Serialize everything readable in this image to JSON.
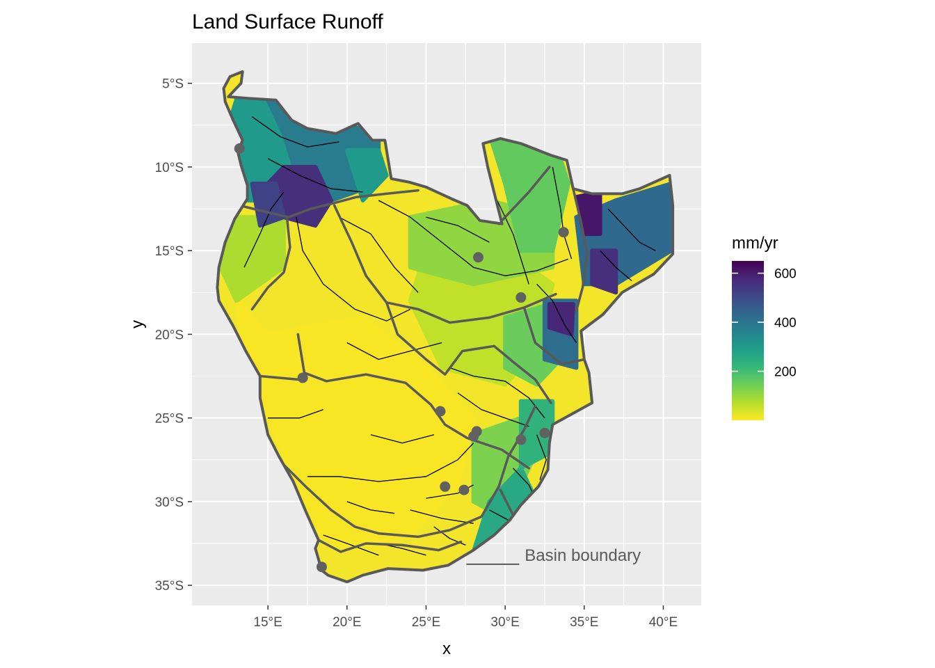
{
  "chart_data": {
    "type": "heatmap",
    "title": "Land Surface Runoff",
    "xlabel": "x",
    "ylabel": "y",
    "xlim": [
      10.2,
      42.4
    ],
    "ylim": [
      -36.2,
      -2.6
    ],
    "x_ticks": [
      {
        "value": 15,
        "label": "15°E"
      },
      {
        "value": 20,
        "label": "20°E"
      },
      {
        "value": 25,
        "label": "25°E"
      },
      {
        "value": 30,
        "label": "30°E"
      },
      {
        "value": 35,
        "label": "35°E"
      },
      {
        "value": 40,
        "label": "40°E"
      }
    ],
    "y_ticks": [
      {
        "value": -5,
        "label": "5°S"
      },
      {
        "value": -10,
        "label": "10°S"
      },
      {
        "value": -15,
        "label": "15°S"
      },
      {
        "value": -20,
        "label": "20°S"
      },
      {
        "value": -25,
        "label": "25°S"
      },
      {
        "value": -30,
        "label": "30°S"
      },
      {
        "value": -35,
        "label": "35°S"
      }
    ],
    "grid": true,
    "legend": {
      "title": "mm/yr",
      "position": "right",
      "range": [
        0,
        650
      ],
      "breaks": [
        {
          "value": 600,
          "label": "600"
        },
        {
          "value": 400,
          "label": "400"
        },
        {
          "value": 200,
          "label": "200"
        }
      ],
      "palette": [
        "#fde725",
        "#b5de2b",
        "#6ece58",
        "#35b779",
        "#1f9e89",
        "#26828e",
        "#31688e",
        "#3e4989",
        "#482878",
        "#440154"
      ]
    },
    "annotation": {
      "label": "Basin boundary",
      "x": 33,
      "y": -33.2
    },
    "outline_color": "#595959",
    "runoff_zones": [
      {
        "value": 5,
        "poly": [
          [
            15,
            -20
          ],
          [
            21,
            -19
          ],
          [
            25,
            -22
          ],
          [
            28,
            -25
          ],
          [
            27,
            -29
          ],
          [
            24,
            -32
          ],
          [
            20,
            -33
          ],
          [
            17,
            -31
          ],
          [
            16,
            -27
          ],
          [
            14,
            -23
          ],
          [
            13,
            -18
          ]
        ]
      },
      {
        "value": 60,
        "poly": [
          [
            25,
            -15
          ],
          [
            30,
            -15
          ],
          [
            33,
            -17
          ],
          [
            32,
            -21
          ],
          [
            30,
            -23
          ],
          [
            26,
            -22
          ],
          [
            24,
            -18
          ]
        ]
      },
      {
        "value": 110,
        "poly": [
          [
            24,
            -13
          ],
          [
            29,
            -12
          ],
          [
            33,
            -13
          ],
          [
            33,
            -16
          ],
          [
            28,
            -17
          ],
          [
            24,
            -16
          ]
        ]
      },
      {
        "value": 160,
        "poly": [
          [
            29,
            -8
          ],
          [
            33,
            -8
          ],
          [
            34,
            -11
          ],
          [
            33,
            -15
          ],
          [
            31,
            -15
          ],
          [
            30,
            -11
          ]
        ]
      },
      {
        "value": 150,
        "poly": [
          [
            30,
            -19
          ],
          [
            33.5,
            -18
          ],
          [
            34,
            -21
          ],
          [
            32,
            -23
          ],
          [
            30,
            -22
          ]
        ]
      },
      {
        "value": 80,
        "poly": [
          [
            12,
            -13
          ],
          [
            16,
            -13
          ],
          [
            16,
            -16
          ],
          [
            13,
            -18
          ],
          [
            12,
            -16
          ]
        ]
      },
      {
        "value": 130,
        "poly": [
          [
            28,
            -26
          ],
          [
            31,
            -25
          ],
          [
            32,
            -27
          ],
          [
            30,
            -31
          ],
          [
            28,
            -30
          ]
        ]
      },
      {
        "value": 260,
        "poly": [
          [
            29,
            -30
          ],
          [
            31,
            -28
          ],
          [
            32,
            -30
          ],
          [
            30,
            -32
          ],
          [
            28,
            -33
          ]
        ]
      },
      {
        "value": 230,
        "poly": [
          [
            31,
            -24
          ],
          [
            33,
            -24
          ],
          [
            33,
            -27
          ],
          [
            31,
            -28
          ]
        ]
      },
      {
        "value": 300,
        "poly": [
          [
            13,
            -6
          ],
          [
            16,
            -6
          ],
          [
            17,
            -9
          ],
          [
            15,
            -12
          ],
          [
            12,
            -12
          ],
          [
            12,
            -9
          ]
        ]
      },
      {
        "value": 380,
        "poly": [
          [
            15,
            -6
          ],
          [
            18,
            -7
          ],
          [
            22,
            -8
          ],
          [
            22,
            -11
          ],
          [
            19,
            -12
          ],
          [
            17,
            -11
          ],
          [
            16,
            -8
          ]
        ]
      },
      {
        "value": 300,
        "poly": [
          [
            20,
            -9
          ],
          [
            22,
            -9
          ],
          [
            22.5,
            -10.5
          ],
          [
            21,
            -12
          ]
        ]
      },
      {
        "value": 560,
        "poly": [
          [
            16,
            -10
          ],
          [
            18,
            -10
          ],
          [
            19,
            -12
          ],
          [
            18,
            -13.5
          ],
          [
            16,
            -13
          ],
          [
            15,
            -11
          ]
        ]
      },
      {
        "value": 520,
        "poly": [
          [
            14,
            -11
          ],
          [
            15.5,
            -11
          ],
          [
            16,
            -13
          ],
          [
            14.5,
            -13.5
          ]
        ]
      },
      {
        "value": 430,
        "poly": [
          [
            34.5,
            -13
          ],
          [
            37,
            -12
          ],
          [
            40.5,
            -11
          ],
          [
            40.5,
            -15
          ],
          [
            37,
            -17
          ],
          [
            35,
            -17
          ]
        ]
      },
      {
        "value": 610,
        "poly": [
          [
            34.5,
            -11.8
          ],
          [
            36,
            -11.5
          ],
          [
            36,
            -14
          ],
          [
            35,
            -14
          ]
        ]
      },
      {
        "value": 560,
        "poly": [
          [
            35.5,
            -15
          ],
          [
            37,
            -15
          ],
          [
            37,
            -17.5
          ],
          [
            35.5,
            -17
          ]
        ]
      },
      {
        "value": 420,
        "poly": [
          [
            32.5,
            -18
          ],
          [
            34.5,
            -18
          ],
          [
            34.5,
            -22
          ],
          [
            32.5,
            -21.5
          ]
        ]
      },
      {
        "value": 580,
        "poly": [
          [
            32.8,
            -18.2
          ],
          [
            34.3,
            -18.2
          ],
          [
            34.2,
            -20
          ],
          [
            32.8,
            -19.6
          ]
        ]
      }
    ],
    "rivers": [
      [
        [
          13.5,
          -16
        ],
        [
          14.5,
          -14
        ],
        [
          15.2,
          -12.5
        ],
        [
          16,
          -11.5
        ]
      ],
      [
        [
          14,
          -7
        ],
        [
          15.8,
          -8.2
        ],
        [
          17.5,
          -8.8
        ],
        [
          19.5,
          -8.5
        ]
      ],
      [
        [
          15,
          -9.5
        ],
        [
          17,
          -10.5
        ],
        [
          19,
          -11.3
        ],
        [
          21,
          -11.5
        ]
      ],
      [
        [
          16.8,
          -13
        ],
        [
          17.2,
          -15
        ],
        [
          18.5,
          -17
        ],
        [
          20.5,
          -18.5
        ],
        [
          22.5,
          -19.2
        ],
        [
          24,
          -18.5
        ]
      ],
      [
        [
          19.5,
          -13
        ],
        [
          21.5,
          -14
        ],
        [
          23,
          -16
        ],
        [
          24.5,
          -17.5
        ]
      ],
      [
        [
          22,
          -12
        ],
        [
          24,
          -13
        ],
        [
          26,
          -14.5
        ],
        [
          28,
          -16
        ],
        [
          30,
          -16.5
        ],
        [
          32,
          -16.2
        ],
        [
          34,
          -15.5
        ]
      ],
      [
        [
          25,
          -13
        ],
        [
          27,
          -13.5
        ],
        [
          29,
          -14.5
        ]
      ],
      [
        [
          28,
          -10
        ],
        [
          29.5,
          -12
        ],
        [
          30.5,
          -14
        ],
        [
          31,
          -15.5
        ],
        [
          31.5,
          -17
        ]
      ],
      [
        [
          33,
          -10
        ],
        [
          33.5,
          -12.5
        ],
        [
          33.7,
          -14
        ],
        [
          34.2,
          -15.5
        ]
      ],
      [
        [
          32,
          -17
        ],
        [
          33,
          -18
        ],
        [
          33.8,
          -19.5
        ],
        [
          34.5,
          -20.5
        ]
      ],
      [
        [
          36.5,
          -12.5
        ],
        [
          37.5,
          -13.5
        ],
        [
          38.5,
          -14.5
        ],
        [
          39.5,
          -15
        ]
      ],
      [
        [
          36,
          -15
        ],
        [
          37,
          -16
        ],
        [
          38,
          -16.8
        ]
      ],
      [
        [
          26.5,
          -22
        ],
        [
          28,
          -22.5
        ],
        [
          30,
          -22.8
        ],
        [
          31.5,
          -23.8
        ],
        [
          32.5,
          -25
        ]
      ],
      [
        [
          27,
          -23.5
        ],
        [
          28.5,
          -24.5
        ],
        [
          30,
          -25
        ],
        [
          31.5,
          -25.5
        ]
      ],
      [
        [
          28,
          -26.5
        ],
        [
          27,
          -27.5
        ],
        [
          25,
          -28.5
        ],
        [
          22,
          -28.8
        ],
        [
          19.5,
          -28.5
        ],
        [
          17.5,
          -28.5
        ]
      ],
      [
        [
          28,
          -29
        ],
        [
          27,
          -29.5
        ],
        [
          25,
          -29.8
        ]
      ],
      [
        [
          20,
          -20.5
        ],
        [
          22,
          -21.5
        ],
        [
          24,
          -21
        ],
        [
          26,
          -20.5
        ]
      ],
      [
        [
          15,
          -25
        ],
        [
          17,
          -25
        ],
        [
          18.5,
          -24.5
        ]
      ],
      [
        [
          30.5,
          -28
        ],
        [
          31.5,
          -29
        ],
        [
          32,
          -30
        ]
      ],
      [
        [
          29,
          -30.5
        ],
        [
          30,
          -31
        ],
        [
          31,
          -31.5
        ]
      ],
      [
        [
          18.5,
          -32
        ],
        [
          20,
          -32.5
        ],
        [
          22,
          -33.2
        ]
      ],
      [
        [
          22,
          -32.5
        ],
        [
          23.5,
          -32.8
        ],
        [
          25,
          -33.2
        ]
      ],
      [
        [
          24,
          -30.5
        ],
        [
          26,
          -31
        ],
        [
          28,
          -31.3
        ]
      ],
      [
        [
          20,
          -30
        ],
        [
          21.5,
          -30.5
        ],
        [
          23,
          -30.7
        ]
      ],
      [
        [
          32,
          -26
        ],
        [
          32.6,
          -27.5
        ],
        [
          32.2,
          -28.7
        ]
      ],
      [
        [
          25.5,
          -31.5
        ],
        [
          26.5,
          -32.2
        ],
        [
          27.5,
          -32.6
        ]
      ],
      [
        [
          21.5,
          -26
        ],
        [
          23.5,
          -26.5
        ],
        [
          25.5,
          -26
        ]
      ]
    ],
    "gauges": [
      [
        13.2,
        -8.9
      ],
      [
        17.2,
        -22.6
      ],
      [
        25.9,
        -24.6
      ],
      [
        28.2,
        -25.8
      ],
      [
        28.0,
        -26.1
      ],
      [
        26.2,
        -29.1
      ],
      [
        27.4,
        -29.3
      ],
      [
        31.0,
        -26.3
      ],
      [
        32.5,
        -25.9
      ],
      [
        31.0,
        -17.8
      ],
      [
        28.3,
        -15.4
      ],
      [
        33.7,
        -13.9
      ],
      [
        18.4,
        -33.9
      ]
    ]
  }
}
